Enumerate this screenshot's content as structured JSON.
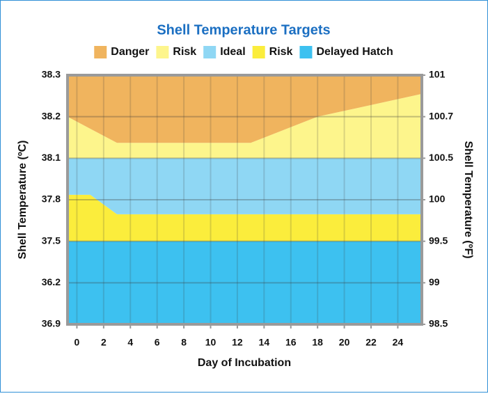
{
  "chart_data": {
    "type": "stacked_area",
    "title": "Shell Temperature Targets",
    "x_label": "Day of Incubation",
    "y_label": "Shell Temperature (ºC)",
    "y2_label": "Shell Temperature (ºF)",
    "x": [
      -0.7,
      1,
      3,
      13,
      18,
      25.8
    ],
    "series": [
      {
        "name": "Delayed Hatch",
        "color": "#3dc1f0",
        "values": [
          2,
          2,
          2,
          2,
          2,
          2
        ]
      },
      {
        "name": "Risk",
        "color": "#fbed3c",
        "values": [
          1.12,
          1.12,
          0.65,
          0.65,
          0.65,
          0.65
        ]
      },
      {
        "name": "Ideal",
        "color": "#8fd7f4",
        "values": [
          0.88,
          0.88,
          1.35,
          1.35,
          1.35,
          1.35
        ]
      },
      {
        "name": "Risk",
        "color": "#fdf58c",
        "values": [
          1,
          0.71,
          0.37,
          0.37,
          1,
          1.55
        ]
      },
      {
        "name": "Danger",
        "color": "#f0b45e",
        "values": [
          1,
          1.29,
          1.63,
          1.63,
          1,
          0.45
        ]
      }
    ],
    "legend_order": [
      4,
      3,
      2,
      1,
      0
    ],
    "xlim": [
      -0.7,
      25.8
    ],
    "xticks": [
      0,
      2,
      4,
      6,
      8,
      10,
      12,
      14,
      16,
      18,
      20,
      22,
      24
    ],
    "ylim": [
      0,
      6
    ],
    "yticks": [
      {
        "value": 0,
        "label": "36.9"
      },
      {
        "value": 1,
        "label": "36.2"
      },
      {
        "value": 2,
        "label": "37.5"
      },
      {
        "value": 3,
        "label": "37.8"
      },
      {
        "value": 4,
        "label": "38.1"
      },
      {
        "value": 5,
        "label": "38.2"
      },
      {
        "value": 6,
        "label": "38.3"
      }
    ],
    "y2lim": [
      0,
      6
    ],
    "y2ticks": [
      {
        "value": 0,
        "label": "98.5"
      },
      {
        "value": 1,
        "label": "99"
      },
      {
        "value": 2,
        "label": "99.5"
      },
      {
        "value": 3,
        "label": "100"
      },
      {
        "value": 4,
        "label": "100.5"
      },
      {
        "value": 5,
        "label": "100.7"
      },
      {
        "value": 6,
        "label": "101"
      }
    ],
    "grid": true
  }
}
